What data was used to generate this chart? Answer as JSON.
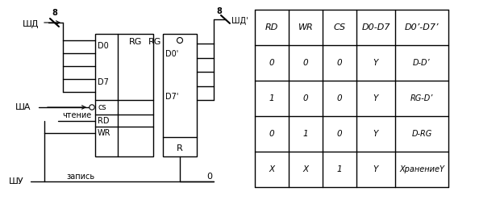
{
  "left_panel": {
    "label_shd_left": "ШД",
    "label_sha": "ША",
    "label_chtenie": "чтение",
    "label_shu": "ШУ",
    "label_zapis": "запись",
    "label_shd_right": "ШД'",
    "label_rg": "RG",
    "label_d0": "D0",
    "label_d7": "D7",
    "label_d0p": "D0'",
    "label_d7p": "D7'",
    "label_cs": "cs",
    "label_rd": "RD",
    "label_wr": "WR",
    "label_r": "R",
    "label_8_left": "8",
    "label_8_right": "8",
    "label_0": "0"
  },
  "table": {
    "headers": [
      "RD",
      "WR",
      "CS",
      "D0-D7",
      "D0’-D7’"
    ],
    "rows": [
      [
        "0",
        "0",
        "0",
        "Y",
        "D-D’"
      ],
      [
        "1",
        "0",
        "0",
        "Y",
        "RG-D’"
      ],
      [
        "0",
        "1",
        "0",
        "Y",
        "D-RG"
      ],
      [
        "X",
        "X",
        "1",
        "Y",
        "ХранениеY"
      ]
    ]
  }
}
